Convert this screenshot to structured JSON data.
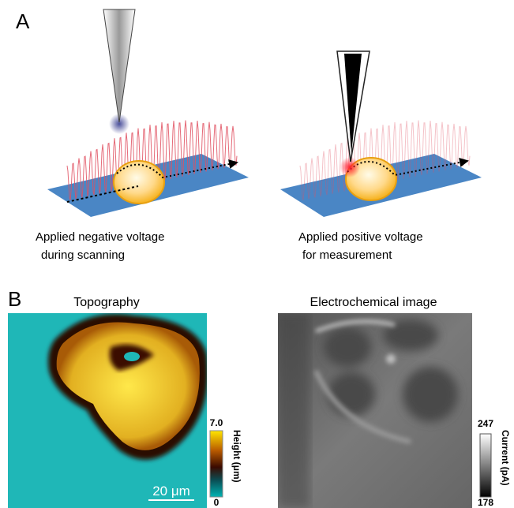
{
  "panel_a": {
    "label": "A",
    "left_caption": [
      "Applied negative voltage",
      "during scanning"
    ],
    "right_caption": [
      "Applied positive voltage",
      "for measurement"
    ]
  },
  "panel_b": {
    "label": "B",
    "topography": {
      "title": "Topography",
      "scale_bar": "20 μm",
      "colorbar_max": "7.0",
      "colorbar_min": "0",
      "colorbar_label": "Height (μm)"
    },
    "electrochemical": {
      "title": "Electrochemical image",
      "colorbar_max": "247",
      "colorbar_min": "178",
      "colorbar_label": "Current (pA)"
    }
  }
}
